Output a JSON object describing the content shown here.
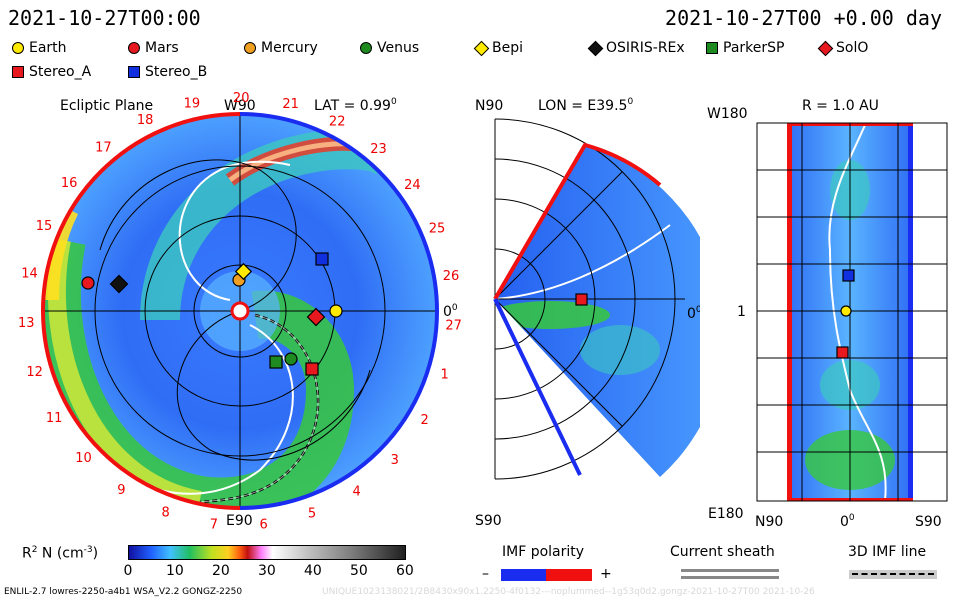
{
  "header": {
    "left_time": "2021-10-27T00:00",
    "right_time": "2021-10-27T00 +0.00 day"
  },
  "legend": [
    {
      "name": "Earth",
      "color": "#ffea00",
      "shape": "circle"
    },
    {
      "name": "Mars",
      "color": "#e8191e",
      "shape": "circle"
    },
    {
      "name": "Mercury",
      "color": "#f0a020",
      "shape": "circle"
    },
    {
      "name": "Venus",
      "color": "#1f8a1f",
      "shape": "circle"
    },
    {
      "name": "Bepi",
      "color": "#ffea00",
      "shape": "diamond"
    },
    {
      "name": "OSIRIS-REx",
      "color": "#111111",
      "shape": "diamond"
    },
    {
      "name": "ParkerSP",
      "color": "#1f8a1f",
      "shape": "square"
    },
    {
      "name": "SolO",
      "color": "#e8191e",
      "shape": "diamond"
    },
    {
      "name": "Stereo_A",
      "color": "#e8191e",
      "shape": "square"
    },
    {
      "name": "Stereo_B",
      "color": "#1030e0",
      "shape": "square"
    }
  ],
  "ecliptic": {
    "title": "Ecliptic Plane",
    "top_label": "W90",
    "bottom_label": "E90",
    "right_label": "0",
    "right_sup": "0",
    "lat_text": "LAT = 0.99",
    "lat_sup": "0",
    "carrington": [
      "19",
      "20",
      "21",
      "22",
      "23",
      "24",
      "25",
      "26",
      "27",
      "1",
      "2",
      "3",
      "4",
      "5",
      "6",
      "7",
      "8",
      "9",
      "10",
      "11",
      "12",
      "13",
      "14",
      "15",
      "16",
      "17",
      "18"
    ]
  },
  "meridional": {
    "top_label": "N90",
    "bottom_label": "S90",
    "lon_text": "LON = E39.5",
    "lon_sup": "0",
    "right_label": "0",
    "right_sup": "0"
  },
  "radial": {
    "title": "R = 1.0 AU",
    "top_left": "W180",
    "bottom_left": "E180",
    "mid_left": "1",
    "bottom_n": "N90",
    "bottom_mid": "0",
    "bottom_mid_sup": "0",
    "bottom_s": "S90"
  },
  "colorbar": {
    "label": "R",
    "label_sup": "2",
    "label_rest": " N (cm",
    "label_rest_sup": "-3",
    "label_end": ")",
    "ticks": [
      "0",
      "10",
      "20",
      "30",
      "40",
      "50",
      "60"
    ]
  },
  "imf": {
    "title": "IMF polarity",
    "minus": "–",
    "plus": "+"
  },
  "sheath": {
    "title": "Current sheath"
  },
  "imf3d": {
    "title": "3D IMF line"
  },
  "footer": {
    "left": "ENLIL-2.7 lowres-2250-a4b1 WSA_V2.2 GONGZ-2250",
    "right": "UNIQUE1023138021/2B8430x90x1.2250-4f0132---noplummed--1g53q0d2.gongz-2021-10-27T00  2021-10-26"
  }
}
